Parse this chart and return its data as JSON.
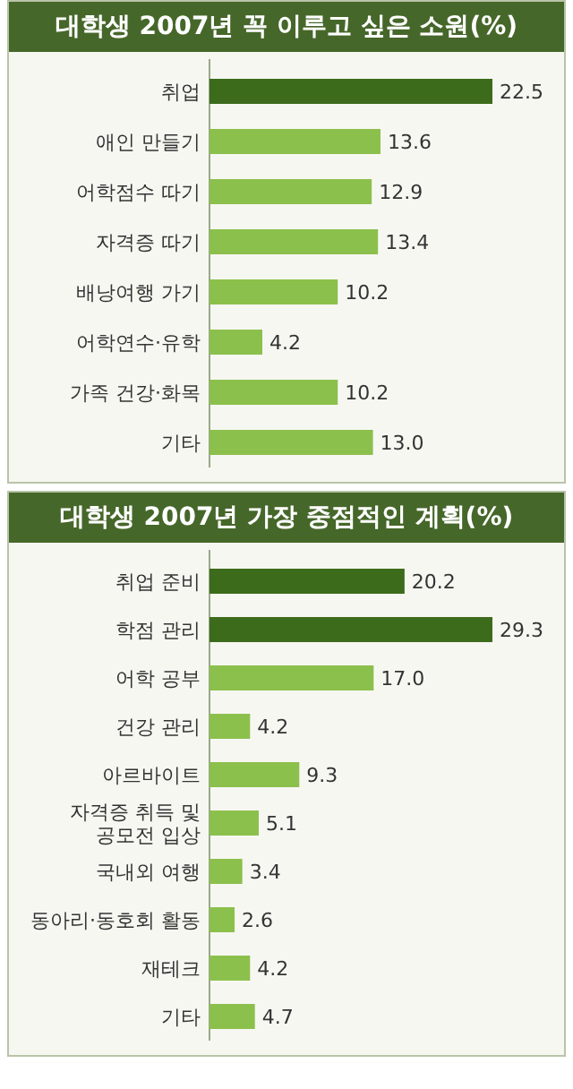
{
  "chart_data": [
    {
      "type": "bar",
      "orientation": "horizontal",
      "title": "대학생 2007년 꼭 이루고 싶은 소원(%)",
      "data_labels": true,
      "categories": [
        "취업",
        "애인 만들기",
        "어학점수 따기",
        "자격증 따기",
        "배낭여행 가기",
        "어학연수·유학",
        "가족 건강·화목",
        "기타"
      ],
      "values": [
        22.5,
        13.6,
        12.9,
        13.4,
        10.2,
        4.2,
        10.2,
        13.0
      ],
      "value_labels": [
        "22.5",
        "13.6",
        "12.9",
        "13.4",
        "10.2",
        "4.2",
        "10.2",
        "13.0"
      ],
      "colors": [
        "#3d6b1c",
        "#8cc04c",
        "#8cc04c",
        "#8cc04c",
        "#8cc04c",
        "#8cc04c",
        "#8cc04c",
        "#8cc04c"
      ]
    },
    {
      "type": "bar",
      "orientation": "horizontal",
      "title": "대학생 2007년 가장 중점적인 계획(%)",
      "data_labels": true,
      "categories": [
        "취업 준비",
        "학점 관리",
        "어학 공부",
        "건강 관리",
        "아르바이트",
        "자격증 취득 및\n공모전 입상",
        "국내외 여행",
        "동아리·동호회 활동",
        "재테크",
        "기타"
      ],
      "values": [
        20.2,
        29.3,
        17.0,
        4.2,
        9.3,
        5.1,
        3.4,
        2.6,
        4.2,
        4.7
      ],
      "value_labels": [
        "20.2",
        "29.3",
        "17.0",
        "4.2",
        "9.3",
        "5.1",
        "3.4",
        "2.6",
        "4.2",
        "4.7"
      ],
      "colors": [
        "#3d6b1c",
        "#3d6b1c",
        "#8cc04c",
        "#8cc04c",
        "#8cc04c",
        "#8cc04c",
        "#8cc04c",
        "#8cc04c",
        "#8cc04c",
        "#8cc04c"
      ]
    }
  ]
}
